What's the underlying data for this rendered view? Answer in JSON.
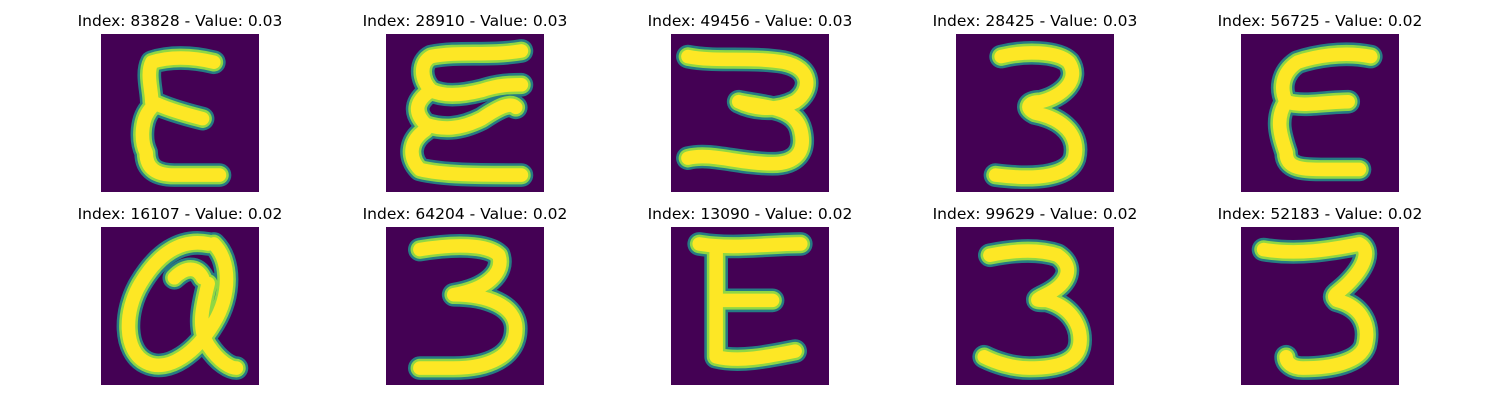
{
  "colors": {
    "background": "#440154",
    "stroke_inner": "#fde725",
    "stroke_mid": "#8fd744",
    "stroke_outer": "#21918c"
  },
  "panels": [
    {
      "title": "Index: 83828 - Value: 0.03",
      "glyph": "epsilon-a"
    },
    {
      "title": "Index: 28910 - Value: 0.03",
      "glyph": "epsilon-b"
    },
    {
      "title": "Index: 49456 - Value: 0.03",
      "glyph": "three-wide"
    },
    {
      "title": "Index: 28425 - Value: 0.03",
      "glyph": "three-a"
    },
    {
      "title": "Index: 56725 - Value: 0.02",
      "glyph": "epsilon-c"
    },
    {
      "title": "Index: 16107 - Value: 0.02",
      "glyph": "q-shape"
    },
    {
      "title": "Index: 64204 - Value: 0.02",
      "glyph": "three-b"
    },
    {
      "title": "Index: 13090 - Value: 0.02",
      "glyph": "e-shape"
    },
    {
      "title": "Index: 99629 - Value: 0.02",
      "glyph": "three-c"
    },
    {
      "title": "Index: 52183 - Value: 0.02",
      "glyph": "three-d"
    }
  ]
}
